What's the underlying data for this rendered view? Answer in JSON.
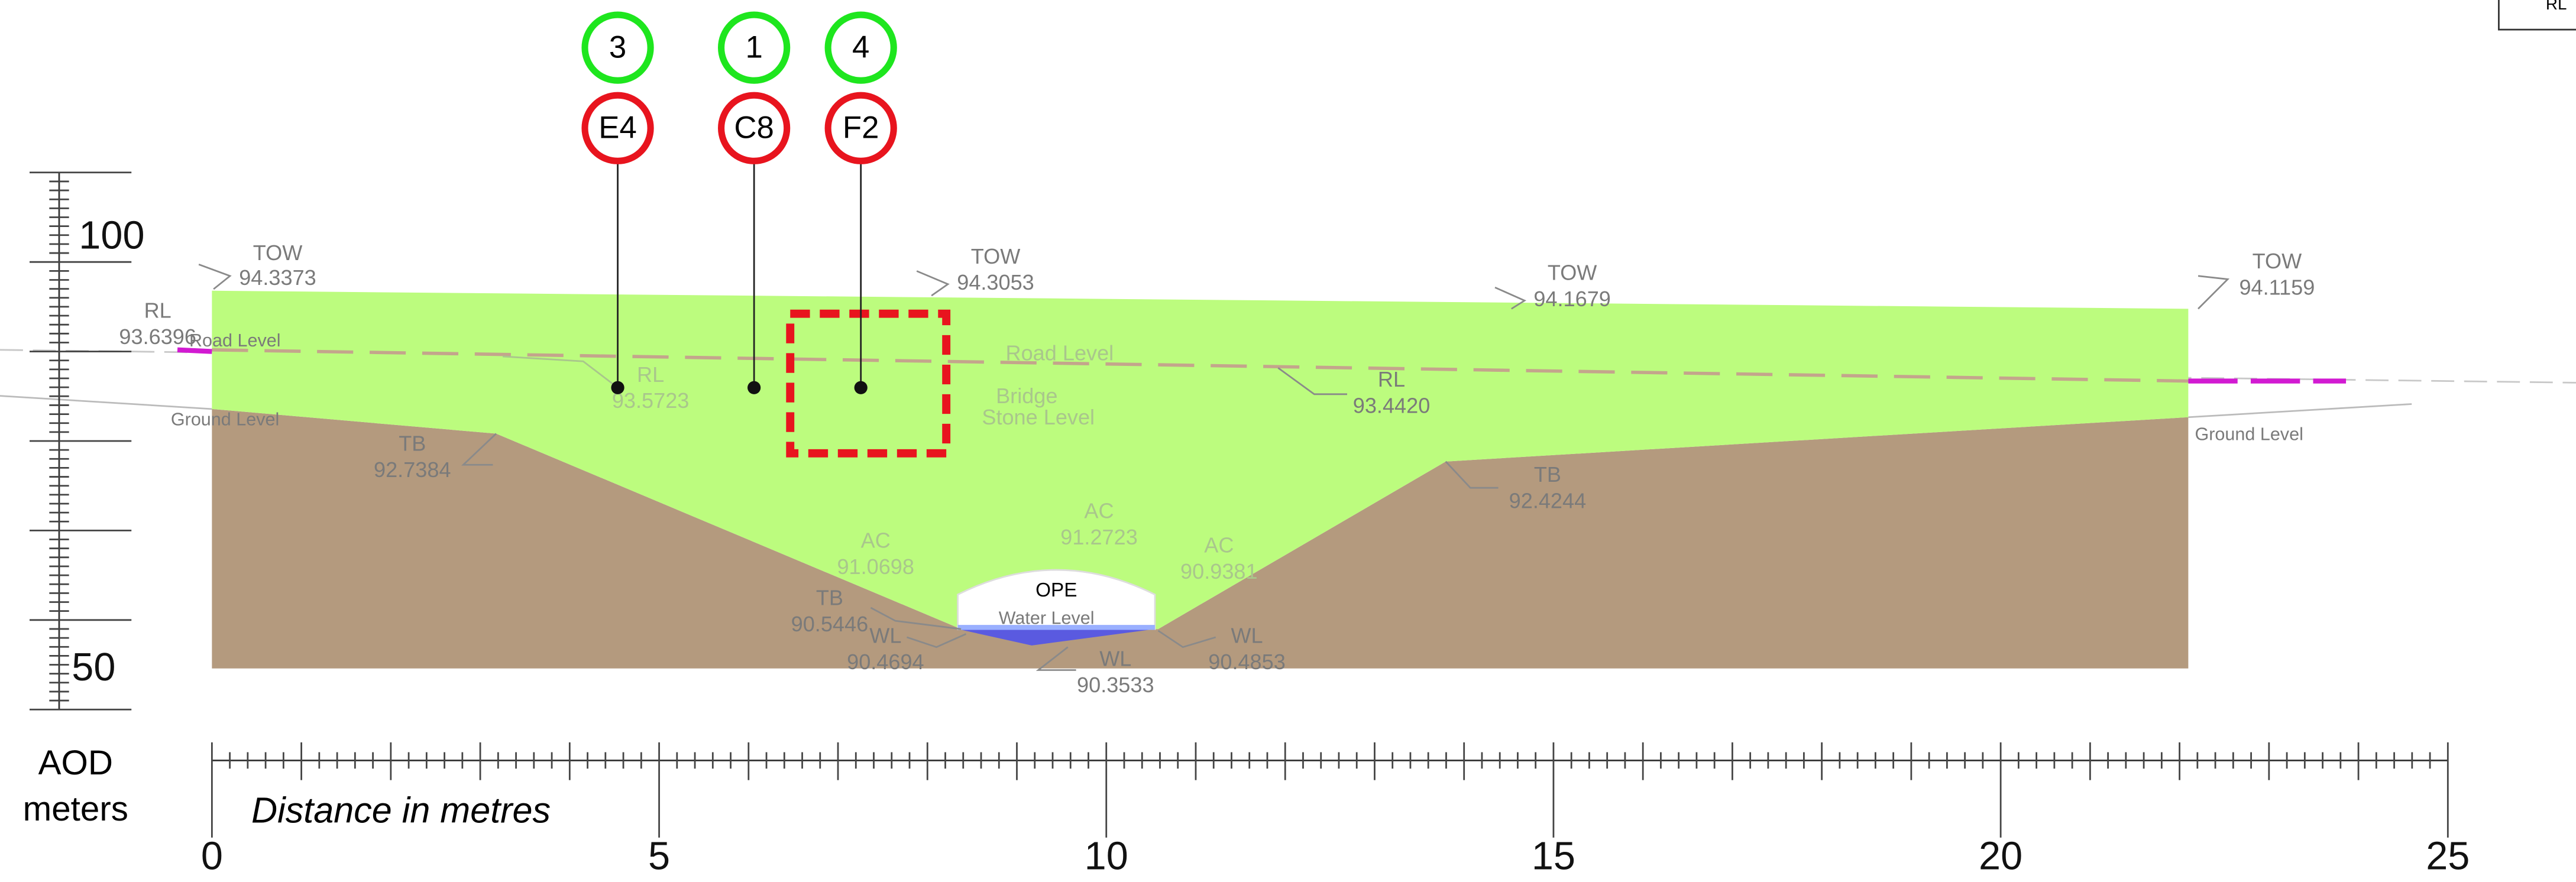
{
  "markers": [
    {
      "number": "3",
      "code": "E4"
    },
    {
      "number": "1",
      "code": "C8"
    },
    {
      "number": "4",
      "code": "F2"
    }
  ],
  "vertical_scale": {
    "ticks": [
      "100",
      "50"
    ],
    "unit_line1": "AOD",
    "unit_line2": "meters"
  },
  "horizontal_scale": {
    "ticks": [
      "0",
      "5",
      "10",
      "15",
      "20",
      "25"
    ],
    "label": "Distance in metres"
  },
  "annotations": {
    "tow_1": {
      "label": "TOW",
      "value": "94.3373"
    },
    "tow_2": {
      "label": "TOW",
      "value": "94.3053"
    },
    "tow_3": {
      "label": "TOW",
      "value": "94.1679"
    },
    "tow_4": {
      "label": "TOW",
      "value": "94.1159"
    },
    "rl_1": {
      "label": "RL",
      "value": "93.6396"
    },
    "rl_2": {
      "label": "RL",
      "value": "93.5723"
    },
    "rl_3": {
      "label": "RL",
      "value": "93.4420"
    },
    "tb_1": {
      "label": "TB",
      "value": "92.7384"
    },
    "tb_2": {
      "label": "TB",
      "value": "92.4244"
    },
    "tb_3": {
      "label": "TB",
      "value": "90.5446"
    },
    "wl_1": {
      "label": "WL",
      "value": "90.4694"
    },
    "wl_2": {
      "label": "WL",
      "value": "90.3533"
    },
    "wl_3": {
      "label": "WL",
      "value": "90.4853"
    },
    "ac_1": {
      "label": "AC",
      "value": "91.0698"
    },
    "ac_2": {
      "label": "AC",
      "value": "91.2723"
    },
    "ac_3": {
      "label": "AC",
      "value": "90.9381"
    }
  },
  "labels": {
    "road_level_left": "Road Level",
    "road_level_mid": "Road Level",
    "bridge_1": "Bridge",
    "bridge_2": "Stone Level",
    "ground_level_left": "Ground Level",
    "ground_level_right": "Ground Level",
    "ope": "OPE",
    "water_level": "Water Level",
    "corner_box": "RL"
  }
}
